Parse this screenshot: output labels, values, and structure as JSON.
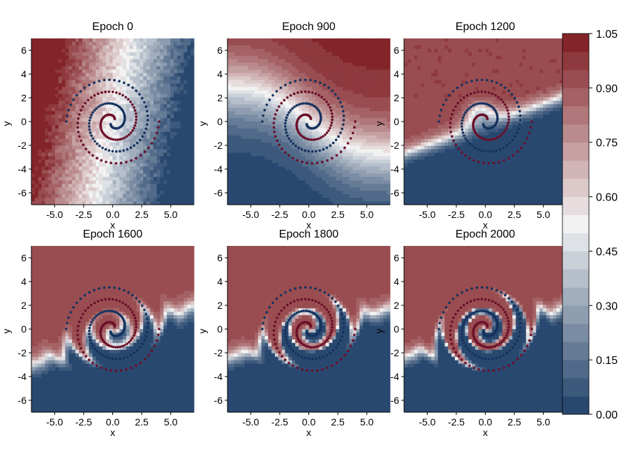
{
  "chart_data": [
    {
      "type": "contour",
      "title": "Epoch 0",
      "xlabel": "x",
      "ylabel": "y",
      "xlim": [
        -7,
        7
      ],
      "ylim": [
        -7,
        7
      ],
      "xticks": [
        "-5.0",
        "-2.5",
        "0.0",
        "2.5",
        "5.0"
      ],
      "yticks": [
        "6",
        "4",
        "2",
        "0",
        "-2",
        "-4",
        "-6"
      ],
      "series": [
        {
          "name": "",
          "kind": "spiral",
          "class": 1,
          "color": "#6a0f2a"
        },
        {
          "name": "",
          "kind": "spiral",
          "class": 0,
          "color": "#15325e"
        }
      ]
    },
    {
      "type": "contour",
      "title": "Epoch 900",
      "xlabel": "x",
      "ylabel": "y",
      "xlim": [
        -7,
        7
      ],
      "ylim": [
        -7,
        7
      ],
      "xticks": [
        "-5.0",
        "-2.5",
        "0.0",
        "2.5",
        "5.0"
      ],
      "yticks": [
        "6",
        "4",
        "2",
        "0",
        "-2",
        "-4",
        "-6"
      ]
    },
    {
      "type": "contour",
      "title": "Epoch 1200",
      "xlabel": "x",
      "ylabel": "y",
      "xlim": [
        -7,
        7
      ],
      "ylim": [
        -7,
        7
      ],
      "xticks": [
        "-5.0",
        "-2.5",
        "0.0",
        "2.5",
        "5.0"
      ],
      "yticks": [
        "6",
        "4",
        "2",
        "0",
        "-2",
        "-4",
        "-6"
      ]
    },
    {
      "type": "contour",
      "title": "Epoch 1600",
      "xlabel": "x",
      "ylabel": "y",
      "xlim": [
        -7,
        7
      ],
      "ylim": [
        -7,
        7
      ],
      "xticks": [
        "-5.0",
        "-2.5",
        "0.0",
        "2.5",
        "5.0"
      ],
      "yticks": [
        "6",
        "4",
        "2",
        "0",
        "-2",
        "-4",
        "-6"
      ]
    },
    {
      "type": "contour",
      "title": "Epoch 1800",
      "xlabel": "x",
      "ylabel": "y",
      "xlim": [
        -7,
        7
      ],
      "ylim": [
        -7,
        7
      ],
      "xticks": [
        "-5.0",
        "-2.5",
        "0.0",
        "2.5",
        "5.0"
      ],
      "yticks": [
        "6",
        "4",
        "2",
        "0",
        "-2",
        "-4",
        "-6"
      ]
    },
    {
      "type": "contour",
      "title": "Epoch 2000",
      "xlabel": "x",
      "ylabel": "y",
      "xlim": [
        -7,
        7
      ],
      "ylim": [
        -7,
        7
      ],
      "xticks": [
        "-5.0",
        "-2.5",
        "0.0",
        "2.5",
        "5.0"
      ],
      "yticks": [
        "6",
        "4",
        "2",
        "0",
        "-2",
        "-4",
        "-6"
      ]
    }
  ],
  "colorbar": {
    "range": [
      0.0,
      1.05
    ],
    "levels": 21,
    "tick_labels": [
      "1.05",
      "0.90",
      "0.75",
      "0.60",
      "0.45",
      "0.30",
      "0.15",
      "0.00"
    ],
    "colors": {
      "low": "#1f4068",
      "mid": "#f2f2f2",
      "high": "#7d1a1f"
    }
  },
  "point_colors": {
    "class_1": "#6a0f2a",
    "class_0": "#15325e"
  }
}
